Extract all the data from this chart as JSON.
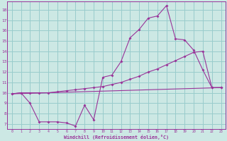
{
  "title": "",
  "xlabel": "Windchill (Refroidissement éolien,°C)",
  "bg_color": "#cce8e4",
  "line_color": "#993399",
  "grid_color": "#99cccc",
  "xlim": [
    -0.5,
    23.5
  ],
  "ylim": [
    6.5,
    18.8
  ],
  "xticks": [
    0,
    1,
    2,
    3,
    4,
    5,
    6,
    7,
    8,
    9,
    10,
    11,
    12,
    13,
    14,
    15,
    16,
    17,
    18,
    19,
    20,
    21,
    22,
    23
  ],
  "yticks": [
    7,
    8,
    9,
    10,
    11,
    12,
    13,
    14,
    15,
    16,
    17,
    18
  ],
  "line1_x": [
    0,
    1,
    2,
    3,
    4,
    5,
    6,
    7,
    8,
    9,
    10,
    11,
    12,
    13,
    14,
    15,
    16,
    17,
    18,
    19,
    20,
    21,
    22,
    23
  ],
  "line1_y": [
    9.9,
    10.0,
    9.0,
    7.2,
    7.2,
    7.2,
    7.1,
    6.8,
    8.8,
    7.4,
    11.5,
    11.7,
    13.0,
    15.3,
    16.1,
    17.2,
    17.4,
    18.4,
    15.2,
    15.1,
    14.1,
    12.2,
    10.5,
    10.5
  ],
  "line2_x": [
    0,
    1,
    2,
    3,
    4,
    5,
    6,
    7,
    8,
    9,
    10,
    11,
    12,
    13,
    14,
    15,
    16,
    17,
    18,
    19,
    20,
    21,
    22,
    23
  ],
  "line2_y": [
    9.9,
    10.0,
    10.0,
    10.0,
    10.0,
    10.1,
    10.2,
    10.3,
    10.4,
    10.5,
    10.6,
    10.8,
    11.0,
    11.3,
    11.6,
    12.0,
    12.3,
    12.7,
    13.1,
    13.5,
    13.9,
    14.0,
    10.5,
    10.5
  ],
  "line3_x": [
    0,
    23
  ],
  "line3_y": [
    9.9,
    10.5
  ]
}
